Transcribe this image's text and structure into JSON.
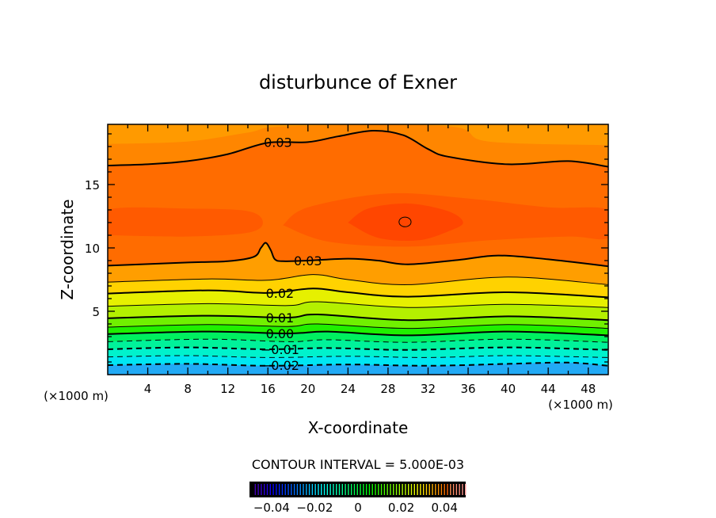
{
  "chart_data": {
    "type": "contour",
    "title": "disturbunce of Exner",
    "xlabel": "X-coordinate",
    "ylabel": "Z-coordinate",
    "x_unit_left": "(×1000 m)",
    "x_unit_right": "(×1000 m)",
    "xlim": [
      0,
      50
    ],
    "ylim": [
      0,
      19.75
    ],
    "xticks": [
      4,
      8,
      12,
      16,
      20,
      24,
      28,
      32,
      36,
      40,
      44,
      48
    ],
    "yticks": [
      5,
      10,
      15
    ],
    "contour_interval_text": "CONTOUR INTERVAL = 5.000E-03",
    "bottom_color": "#22aaf5",
    "contours": [
      {
        "level": -0.02,
        "color_above": "#00e6f2",
        "points": [
          [
            0,
            0.75
          ],
          [
            8,
            0.85
          ],
          [
            16,
            0.7
          ],
          [
            24,
            0.8
          ],
          [
            32,
            0.7
          ],
          [
            40,
            0.85
          ],
          [
            46,
            0.95
          ],
          [
            50,
            0.7
          ]
        ]
      },
      {
        "level": -0.015,
        "color_above": "#00f2cc",
        "points": [
          [
            0,
            1.4
          ],
          [
            8,
            1.5
          ],
          [
            16,
            1.35
          ],
          [
            24,
            1.45
          ],
          [
            32,
            1.35
          ],
          [
            40,
            1.5
          ],
          [
            50,
            1.35
          ]
        ]
      },
      {
        "level": -0.01,
        "color_above": "#00f29a",
        "points": [
          [
            0,
            2.0
          ],
          [
            8,
            2.15
          ],
          [
            16,
            2.0
          ],
          [
            22,
            2.1
          ],
          [
            30,
            1.95
          ],
          [
            40,
            2.15
          ],
          [
            50,
            1.95
          ]
        ]
      },
      {
        "level": -0.005,
        "color_above": "#00f060",
        "points": [
          [
            0,
            2.6
          ],
          [
            10,
            2.8
          ],
          [
            18,
            2.6
          ],
          [
            22,
            2.75
          ],
          [
            30,
            2.55
          ],
          [
            40,
            2.8
          ],
          [
            50,
            2.55
          ]
        ]
      },
      {
        "level": 0.0,
        "color_above": "#20f000",
        "points": [
          [
            0,
            3.2
          ],
          [
            10,
            3.4
          ],
          [
            18,
            3.25
          ],
          [
            22,
            3.4
          ],
          [
            30,
            3.1
          ],
          [
            40,
            3.4
          ],
          [
            50,
            3.1
          ]
        ]
      },
      {
        "level": 0.005,
        "color_above": "#70f000",
        "points": [
          [
            0,
            3.75
          ],
          [
            10,
            3.95
          ],
          [
            18,
            3.8
          ],
          [
            21,
            4.0
          ],
          [
            30,
            3.65
          ],
          [
            40,
            3.95
          ],
          [
            50,
            3.65
          ]
        ]
      },
      {
        "level": 0.01,
        "color_above": "#b4f000",
        "points": [
          [
            0,
            4.45
          ],
          [
            10,
            4.65
          ],
          [
            18,
            4.5
          ],
          [
            21,
            4.75
          ],
          [
            30,
            4.3
          ],
          [
            40,
            4.6
          ],
          [
            50,
            4.3
          ]
        ]
      },
      {
        "level": 0.015,
        "color_above": "#e6f000",
        "points": [
          [
            0,
            5.4
          ],
          [
            10,
            5.6
          ],
          [
            18,
            5.45
          ],
          [
            21,
            5.75
          ],
          [
            30,
            5.3
          ],
          [
            40,
            5.55
          ],
          [
            50,
            5.3
          ]
        ]
      },
      {
        "level": 0.02,
        "color_above": "#ffd200",
        "points": [
          [
            0,
            6.4
          ],
          [
            10,
            6.65
          ],
          [
            16,
            6.45
          ],
          [
            20.5,
            6.8
          ],
          [
            24,
            6.5
          ],
          [
            30,
            6.15
          ],
          [
            40,
            6.5
          ],
          [
            50,
            6.1
          ]
        ]
      },
      {
        "level": 0.025,
        "color_above": "#ff9e00",
        "points": [
          [
            0,
            7.3
          ],
          [
            10,
            7.55
          ],
          [
            16,
            7.45
          ],
          [
            20.5,
            7.9
          ],
          [
            24,
            7.5
          ],
          [
            30,
            7.1
          ],
          [
            40,
            7.7
          ],
          [
            50,
            7.1
          ]
        ]
      },
      {
        "level": 0.03,
        "color_above": "#ff6c00",
        "points": [
          [
            0,
            8.6
          ],
          [
            8,
            8.85
          ],
          [
            12,
            8.95
          ],
          [
            14.6,
            9.3
          ],
          [
            15.3,
            10.0
          ],
          [
            15.8,
            10.4
          ],
          [
            16.3,
            9.8
          ],
          [
            16.7,
            9.1
          ],
          [
            17.5,
            8.95
          ],
          [
            20,
            9.0
          ],
          [
            24,
            9.15
          ],
          [
            27,
            9.0
          ],
          [
            30,
            8.7
          ],
          [
            35,
            9.05
          ],
          [
            39,
            9.4
          ],
          [
            44,
            9.1
          ],
          [
            50,
            8.55
          ]
        ]
      },
      {
        "level": 0.03,
        "color_above": "#ff8600",
        "points": [
          [
            0,
            16.5
          ],
          [
            4,
            16.6
          ],
          [
            8,
            16.85
          ],
          [
            12,
            17.4
          ],
          [
            16,
            18.3
          ],
          [
            20,
            18.35
          ],
          [
            23,
            18.8
          ],
          [
            26.5,
            19.25
          ],
          [
            29.5,
            18.9
          ],
          [
            32,
            17.8
          ],
          [
            34,
            17.2
          ],
          [
            40,
            16.6
          ],
          [
            46,
            16.85
          ],
          [
            50,
            16.4
          ]
        ]
      },
      {
        "level": 0.025,
        "color_above": "#ff9a00",
        "points": [
          [
            0,
            18.2
          ],
          [
            8,
            18.4
          ],
          [
            14,
            19.1
          ],
          [
            18,
            19.6
          ],
          [
            34,
            19.6
          ],
          [
            38,
            18.4
          ],
          [
            50,
            18.1
          ]
        ]
      }
    ],
    "core_regions": [
      {
        "level": 0.035,
        "color": "#ff5a00",
        "points": [
          [
            0,
            11.0
          ],
          [
            8,
            10.9
          ],
          [
            14,
            11.2
          ],
          [
            15.5,
            12.0
          ],
          [
            14,
            12.9
          ],
          [
            8,
            13.1
          ],
          [
            0,
            13.0
          ]
        ]
      },
      {
        "level": 0.035,
        "color": "#ff5a00",
        "points": [
          [
            17.5,
            11.8
          ],
          [
            22,
            10.5
          ],
          [
            30,
            10.1
          ],
          [
            38,
            10.6
          ],
          [
            46,
            10.9
          ],
          [
            50,
            10.8
          ],
          [
            50,
            13.0
          ],
          [
            44,
            13.2
          ],
          [
            36,
            13.9
          ],
          [
            28,
            14.3
          ],
          [
            20,
            13.2
          ]
        ]
      },
      {
        "level": 0.04,
        "color": "#ff4600",
        "points": [
          [
            24,
            12.0
          ],
          [
            27,
            10.8
          ],
          [
            31,
            10.6
          ],
          [
            34,
            11.3
          ],
          [
            35.5,
            12.0
          ],
          [
            34,
            12.9
          ],
          [
            30,
            13.5
          ],
          [
            26,
            13.1
          ]
        ]
      }
    ],
    "closed_contour": {
      "level": 0.04,
      "center": [
        29.7,
        12.05
      ],
      "rx": 0.6,
      "rz": 0.38
    },
    "contour_labels": [
      {
        "text": "0.03",
        "x": 17.0,
        "z": 18.35
      },
      {
        "text": "0.03",
        "x": 20.0,
        "z": 9.0
      },
      {
        "text": "0.02",
        "x": 17.2,
        "z": 6.45
      },
      {
        "text": "0.01",
        "x": 17.2,
        "z": 4.5
      },
      {
        "text": "0.00",
        "x": 17.2,
        "z": 3.25
      },
      {
        "text": "−0.01",
        "x": 17.2,
        "z": 2.0
      },
      {
        "text": "−0.02",
        "x": 17.2,
        "z": 0.75
      }
    ],
    "colorbar": {
      "range": [
        -0.05,
        0.05
      ],
      "ticks": [
        -0.04,
        -0.02,
        0,
        0.02,
        0.04
      ],
      "tick_labels": [
        "−0.04",
        "−0.02",
        "0",
        "0.02",
        "0.04"
      ],
      "step": 0.0025
    }
  }
}
